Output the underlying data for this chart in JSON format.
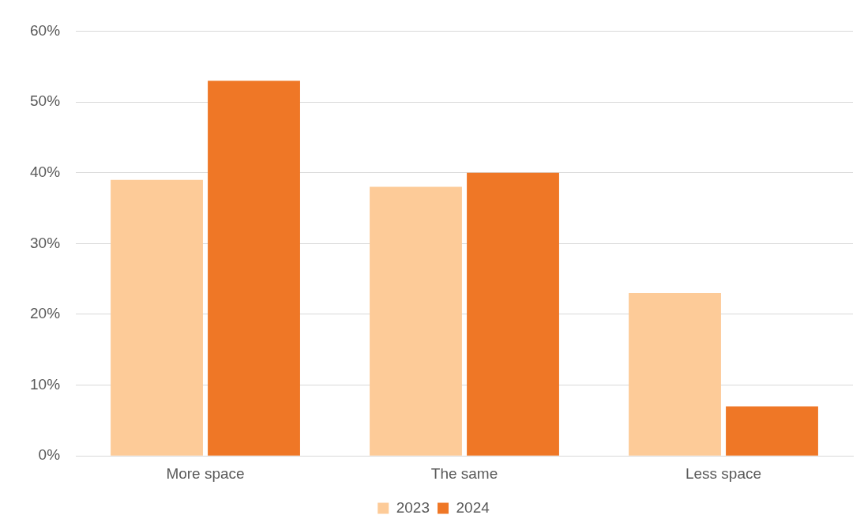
{
  "chart_data": {
    "type": "bar",
    "categories": [
      "More space",
      "The same",
      "Less space"
    ],
    "series": [
      {
        "name": "2023",
        "color": "#fdcb98",
        "values": [
          39,
          38,
          23
        ]
      },
      {
        "name": "2024",
        "color": "#ef7726",
        "values": [
          53,
          40,
          7
        ]
      }
    ],
    "ylim": [
      0,
      60
    ],
    "yticks": [
      {
        "value": 0,
        "label": "0%"
      },
      {
        "value": 10,
        "label": "10%"
      },
      {
        "value": 20,
        "label": "20%"
      },
      {
        "value": 30,
        "label": "30%"
      },
      {
        "value": 40,
        "label": "40%"
      },
      {
        "value": 50,
        "label": "50%"
      },
      {
        "value": 60,
        "label": "60%"
      }
    ],
    "grid": "y",
    "legend": "bottom"
  }
}
